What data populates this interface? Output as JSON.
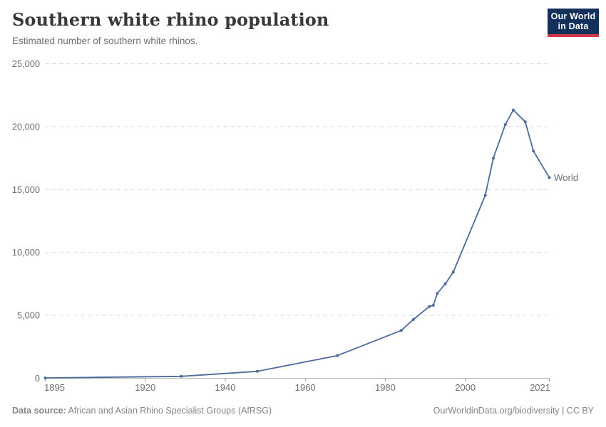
{
  "header": {
    "title": "Southern white rhino population",
    "subtitle": "Estimated number of southern white rhinos.",
    "logo": {
      "line1": "Our World",
      "line2": "in Data"
    }
  },
  "chart_data": {
    "type": "line",
    "title": "Southern white rhino population",
    "subtitle": "Estimated number of southern white rhinos.",
    "xlabel": "",
    "ylabel": "",
    "xlim": [
      1895,
      2021
    ],
    "ylim": [
      0,
      25000
    ],
    "grid": "horizontal-dashed",
    "legend_position": "end-of-line-label",
    "x_ticks": [
      1895,
      1920,
      1940,
      1960,
      1980,
      2000,
      2021
    ],
    "x_tick_labels": [
      "1895",
      "1920",
      "1940",
      "1960",
      "1980",
      "2000",
      "2021"
    ],
    "y_ticks": [
      0,
      5000,
      10000,
      15000,
      20000,
      25000
    ],
    "y_tick_labels": [
      "0",
      "5,000",
      "10,000",
      "15,000",
      "20,000",
      "25,000"
    ],
    "series": [
      {
        "name": "World",
        "points": [
          [
            1895,
            20
          ],
          [
            1929,
            150
          ],
          [
            1948,
            550
          ],
          [
            1968,
            1800
          ],
          [
            1984,
            3800
          ],
          [
            1987,
            4665
          ],
          [
            1991,
            5700
          ],
          [
            1992,
            5800
          ],
          [
            1993,
            6750
          ],
          [
            1995,
            7500
          ],
          [
            1997,
            8440
          ],
          [
            2005,
            14540
          ],
          [
            2007,
            17480
          ],
          [
            2010,
            20165
          ],
          [
            2012,
            21316
          ],
          [
            2015,
            20378
          ],
          [
            2017,
            18064
          ],
          [
            2021,
            15942
          ]
        ]
      }
    ],
    "colors": {
      "line": "#4c6a9c",
      "grid": "#d9d9d9",
      "axis": "#b3b3b3",
      "tick_mark": "#999999",
      "tick_label": "#6e6e6e"
    }
  },
  "footer": {
    "source_label": "Data source:",
    "source_text": " African and Asian Rhino Specialist Groups (AfRSG)",
    "attribution": "OurWorldinData.org/biodiversity | CC BY"
  },
  "colors": {
    "title": "#383838",
    "subtitle": "#6d6d6d",
    "footer_text": "#858585",
    "logo_background": "#12305a",
    "logo_accent_red": "#d0374a",
    "background": "#ffffff"
  }
}
